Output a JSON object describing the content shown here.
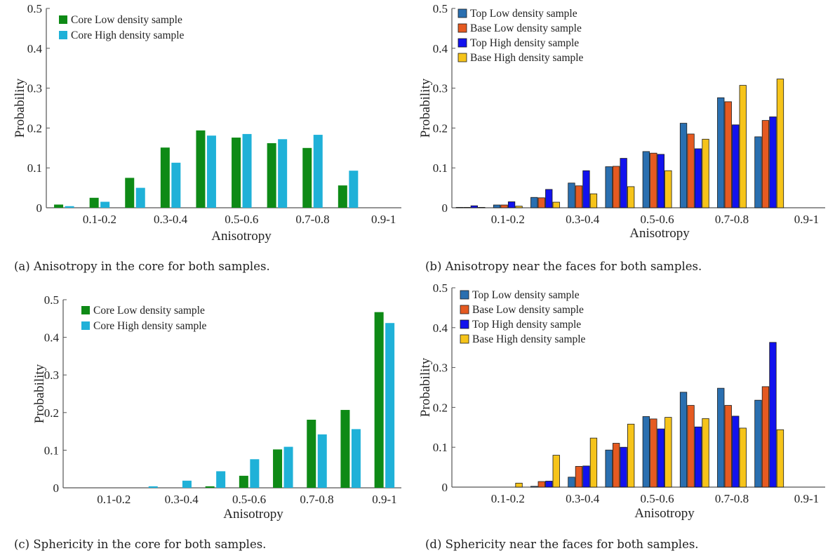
{
  "captions": {
    "a": "(a) Anisotropy in the core for both samples.",
    "b": "(b) Anisotropy near the faces for both samples.",
    "c": "(c) Sphericity in the core for both samples.",
    "d": "(d) Sphericity near the faces for both samples."
  },
  "colors": {
    "core_low": "#0e8a16",
    "core_high": "#1fb1d8",
    "top_low": "#2a6fb0",
    "base_low": "#e55a21",
    "top_high": "#1212ee",
    "base_high": "#f6c41a"
  },
  "chart_data": [
    {
      "id": "a",
      "type": "bar",
      "xlabel": "Anisotropy",
      "ylabel": "Probability",
      "ylim": [
        0,
        0.5
      ],
      "yticks": [
        "0",
        "0.1",
        "0.2",
        "0.3",
        "0.4",
        "0.5"
      ],
      "categories": [
        "0-0.1",
        "0.1-0.2",
        "0.2-0.3",
        "0.3-0.4",
        "0.4-0.5",
        "0.5-0.6",
        "0.6-0.7",
        "0.7-0.8",
        "0.8-0.9",
        "0.9-1"
      ],
      "xtick_labels": [
        "",
        "0.1-0.2",
        "",
        "0.3-0.4",
        "",
        "0.5-0.6",
        "",
        "0.7-0.8",
        "",
        "0.9-1"
      ],
      "legend_position": "top-left",
      "series": [
        {
          "name": "Core Low density sample",
          "color_key": "core_low",
          "values": [
            0.008,
            0.025,
            0.075,
            0.151,
            0.194,
            0.176,
            0.162,
            0.15,
            0.056,
            0.0
          ]
        },
        {
          "name": "Core High density sample",
          "color_key": "core_high",
          "values": [
            0.004,
            0.015,
            0.05,
            0.113,
            0.181,
            0.185,
            0.172,
            0.183,
            0.093,
            0.0
          ]
        }
      ]
    },
    {
      "id": "b",
      "type": "bar",
      "xlabel": "Anisotropy",
      "ylabel": "Probability",
      "ylim": [
        0,
        0.5
      ],
      "yticks": [
        "0",
        "0.1",
        "0.2",
        "0.3",
        "0.4",
        "0.5"
      ],
      "categories": [
        "0-0.1",
        "0.1-0.2",
        "0.2-0.3",
        "0.3-0.4",
        "0.4-0.5",
        "0.5-0.6",
        "0.6-0.7",
        "0.7-0.8",
        "0.8-0.9",
        "0.9-1"
      ],
      "xtick_labels": [
        "",
        "0.1-0.2",
        "",
        "0.3-0.4",
        "",
        "0.5-0.6",
        "",
        "0.7-0.8",
        "",
        "0.9-1"
      ],
      "legend_position": "top-left",
      "series": [
        {
          "name": "Top Low density sample",
          "color_key": "top_low",
          "values": [
            0.001,
            0.007,
            0.026,
            0.062,
            0.103,
            0.141,
            0.212,
            0.276,
            0.178,
            0.0
          ]
        },
        {
          "name": "Base Low density sample",
          "color_key": "base_low",
          "values": [
            0.001,
            0.007,
            0.025,
            0.055,
            0.104,
            0.137,
            0.185,
            0.266,
            0.219,
            0.0
          ]
        },
        {
          "name": "Top High density sample",
          "color_key": "top_high",
          "values": [
            0.005,
            0.015,
            0.046,
            0.093,
            0.124,
            0.134,
            0.148,
            0.208,
            0.228,
            0.0
          ]
        },
        {
          "name": "Base High density sample",
          "color_key": "base_high",
          "values": [
            0.001,
            0.004,
            0.014,
            0.035,
            0.053,
            0.093,
            0.172,
            0.307,
            0.323,
            0.0
          ]
        }
      ]
    },
    {
      "id": "c",
      "type": "bar",
      "xlabel": "Anisotropy",
      "ylabel": "Probability",
      "ylim": [
        0,
        0.5
      ],
      "yticks": [
        "0",
        "0.1",
        "0.2",
        "0.3",
        "0.4",
        "0.5"
      ],
      "categories": [
        "0-0.1",
        "0.1-0.2",
        "0.2-0.3",
        "0.3-0.4",
        "0.4-0.5",
        "0.5-0.6",
        "0.6-0.7",
        "0.7-0.8",
        "0.8-0.9",
        "0.9-1"
      ],
      "xtick_labels": [
        "",
        "0.1-0.2",
        "",
        "0.3-0.4",
        "",
        "0.5-0.6",
        "",
        "0.7-0.8",
        "",
        "0.9-1"
      ],
      "legend_position": "top-left",
      "series": [
        {
          "name": "Core Low density sample",
          "color_key": "core_low",
          "values": [
            0.0,
            0.0,
            0.0,
            0.0,
            0.004,
            0.032,
            0.102,
            0.181,
            0.207,
            0.467
          ]
        },
        {
          "name": "Core High density sample",
          "color_key": "core_high",
          "values": [
            0.0,
            0.0,
            0.004,
            0.019,
            0.044,
            0.076,
            0.109,
            0.142,
            0.156,
            0.438
          ]
        }
      ]
    },
    {
      "id": "d",
      "type": "bar",
      "xlabel": "Anisotropy",
      "ylabel": "Probability",
      "ylim": [
        0,
        0.5
      ],
      "yticks": [
        "0",
        "0.1",
        "0.2",
        "0.3",
        "0.4",
        "0.5"
      ],
      "categories": [
        "0-0.1",
        "0.1-0.2",
        "0.2-0.3",
        "0.3-0.4",
        "0.4-0.5",
        "0.5-0.6",
        "0.6-0.7",
        "0.7-0.8",
        "0.8-0.9",
        "0.9-1"
      ],
      "xtick_labels": [
        "",
        "0.1-0.2",
        "",
        "0.3-0.4",
        "",
        "0.5-0.6",
        "",
        "0.7-0.8",
        "",
        "0.9-1"
      ],
      "legend_position": "top-left",
      "series": [
        {
          "name": "Top Low density sample",
          "color_key": "top_low",
          "values": [
            0.0,
            0.0,
            0.002,
            0.025,
            0.093,
            0.177,
            0.238,
            0.248,
            0.218,
            0.0
          ]
        },
        {
          "name": "Base Low density sample",
          "color_key": "base_low",
          "values": [
            0.0,
            0.0,
            0.014,
            0.052,
            0.11,
            0.171,
            0.205,
            0.205,
            0.252,
            0.0
          ]
        },
        {
          "name": "Top High density sample",
          "color_key": "top_high",
          "values": [
            0.0,
            0.0,
            0.015,
            0.053,
            0.1,
            0.146,
            0.151,
            0.178,
            0.363,
            0.0
          ]
        },
        {
          "name": "Base High density sample",
          "color_key": "base_high",
          "values": [
            0.0,
            0.01,
            0.08,
            0.123,
            0.158,
            0.175,
            0.172,
            0.148,
            0.144,
            0.0
          ]
        }
      ]
    }
  ]
}
